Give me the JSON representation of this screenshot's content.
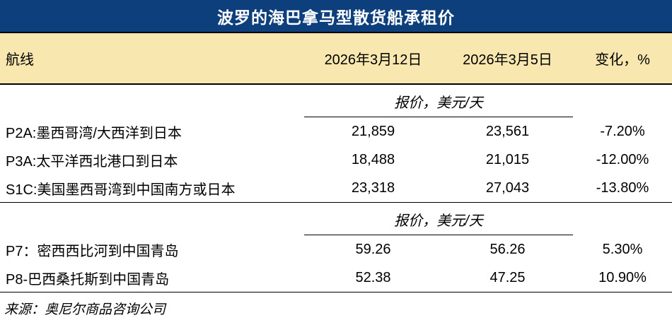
{
  "title": "波罗的海巴拿马型散货船承租价",
  "colors": {
    "navy": "#0d3f7d",
    "cream": "#f8e8b0",
    "line": "#000000",
    "title_text": "#ffffff"
  },
  "header": {
    "route": "航线",
    "date1": "2026年3月12日",
    "date2": "2026年3月5日",
    "change": "变化，%"
  },
  "sections": [
    {
      "subheader": "报价，美元/天",
      "rows": [
        {
          "route": "P2A:墨西哥湾/大西洋到日本",
          "v1": "21,859",
          "v2": "23,561",
          "change": "-7.20%"
        },
        {
          "route": "P3A:太平洋西北港口到日本",
          "v1": "18,488",
          "v2": "21,015",
          "change": "-12.00%"
        },
        {
          "route": "S1C:美国墨西哥湾到中国南方或日本",
          "v1": "23,318",
          "v2": "27,043",
          "change": "-13.80%"
        }
      ]
    },
    {
      "subheader": "报价，美元/天",
      "rows": [
        {
          "route": "P7：密西西比河到中国青岛",
          "v1": "59.26",
          "v2": "56.26",
          "change": "5.30%"
        },
        {
          "route": "P8-巴西桑托斯到中国青岛",
          "v1": "52.38",
          "v2": "47.25",
          "change": "10.90%"
        }
      ]
    }
  ],
  "source": "来源：奥尼尔商品咨询公司",
  "chart_data": {
    "type": "table",
    "title": "波罗的海巴拿马型散货船承租价",
    "columns": [
      "航线",
      "2026年3月12日",
      "2026年3月5日",
      "变化，%"
    ],
    "section_unit_label": "报价，美元/天",
    "rows": [
      [
        "P2A:墨西哥湾/大西洋到日本",
        21859,
        23561,
        "-7.20%"
      ],
      [
        "P3A:太平洋西北港口到日本",
        18488,
        21015,
        "-12.00%"
      ],
      [
        "S1C:美国墨西哥湾到中国南方或日本",
        23318,
        27043,
        "-13.80%"
      ],
      [
        "P7：密西西比河到中国青岛",
        59.26,
        56.26,
        "5.30%"
      ],
      [
        "P8-巴西桑托斯到中国青岛",
        52.38,
        47.25,
        "10.90%"
      ]
    ],
    "source": "来源：奥尼尔商品咨询公司"
  }
}
